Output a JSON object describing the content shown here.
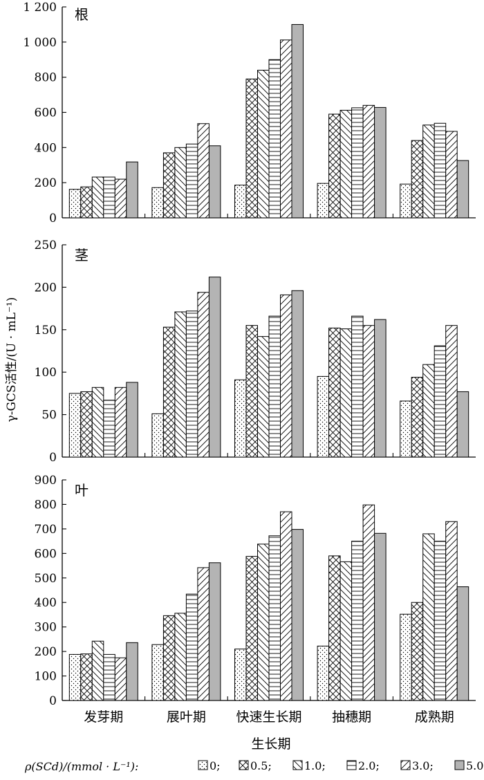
{
  "y_axis_label": "γ-GCS活性/(U · mL⁻¹)",
  "x_axis_label": "生长期",
  "legend": {
    "prefix": "ρ(SCd)/(mmol · L⁻¹):",
    "entries": [
      "0;",
      "0.5;",
      "1.0;",
      "2.0;",
      "3.0;",
      "5.0。"
    ]
  },
  "patterns": [
    "dots",
    "crosshatch",
    "backslash",
    "horizontal",
    "forwardslash",
    "gray"
  ],
  "colors": {
    "bar_fill_gray": "#b4b4b4",
    "stroke": "#000000",
    "background": "#ffffff"
  },
  "chart_data": [
    {
      "type": "bar",
      "title": "根",
      "categories": [
        "发芽期",
        "展叶期",
        "快速生长期",
        "抽穗期",
        "成熟期"
      ],
      "ylim": [
        0,
        1200
      ],
      "yticks": [
        0,
        200,
        400,
        600,
        800,
        1000,
        1200
      ],
      "ytick_labels": [
        "0",
        "200",
        "400",
        "600",
        "800",
        "1 000",
        "1 200"
      ],
      "series": [
        {
          "name": "0",
          "values": [
            162,
            172,
            186,
            196,
            192
          ]
        },
        {
          "name": "0.5",
          "values": [
            176,
            370,
            790,
            590,
            440
          ]
        },
        {
          "name": "1.0",
          "values": [
            232,
            400,
            840,
            612,
            528
          ]
        },
        {
          "name": "2.0",
          "values": [
            232,
            420,
            900,
            626,
            538
          ]
        },
        {
          "name": "3.0",
          "values": [
            220,
            536,
            1012,
            640,
            492
          ]
        },
        {
          "name": "5.0",
          "values": [
            318,
            410,
            1100,
            628,
            326
          ]
        }
      ]
    },
    {
      "type": "bar",
      "title": "茎",
      "categories": [
        "发芽期",
        "展叶期",
        "快速生长期",
        "抽穗期",
        "成熟期"
      ],
      "ylim": [
        0,
        250
      ],
      "yticks": [
        0,
        50,
        100,
        150,
        200,
        250
      ],
      "ytick_labels": [
        "0",
        "50",
        "100",
        "150",
        "200",
        "250"
      ],
      "series": [
        {
          "name": "0",
          "values": [
            75,
            51,
            91,
            95,
            66
          ]
        },
        {
          "name": "0.5",
          "values": [
            77,
            153,
            155,
            152,
            94
          ]
        },
        {
          "name": "1.0",
          "values": [
            82,
            171,
            142,
            151,
            109
          ]
        },
        {
          "name": "2.0",
          "values": [
            67,
            172,
            166,
            166,
            131
          ]
        },
        {
          "name": "3.0",
          "values": [
            82,
            194,
            191,
            155,
            155
          ]
        },
        {
          "name": "5.0",
          "values": [
            88,
            212,
            196,
            162,
            77
          ]
        }
      ]
    },
    {
      "type": "bar",
      "title": "叶",
      "categories": [
        "发芽期",
        "展叶期",
        "快速生长期",
        "抽穗期",
        "成熟期"
      ],
      "ylim": [
        0,
        900
      ],
      "yticks": [
        0,
        100,
        200,
        300,
        400,
        500,
        600,
        700,
        800,
        900
      ],
      "ytick_labels": [
        "0",
        "100",
        "200",
        "300",
        "400",
        "500",
        "600",
        "700",
        "800",
        "900"
      ],
      "series": [
        {
          "name": "0",
          "values": [
            188,
            228,
            210,
            222,
            352
          ]
        },
        {
          "name": "0.5",
          "values": [
            190,
            346,
            588,
            590,
            400
          ]
        },
        {
          "name": "1.0",
          "values": [
            242,
            356,
            638,
            566,
            680
          ]
        },
        {
          "name": "2.0",
          "values": [
            188,
            434,
            672,
            650,
            650
          ]
        },
        {
          "name": "3.0",
          "values": [
            174,
            542,
            770,
            798,
            730
          ]
        },
        {
          "name": "5.0",
          "values": [
            236,
            562,
            698,
            682,
            464
          ]
        }
      ]
    }
  ]
}
